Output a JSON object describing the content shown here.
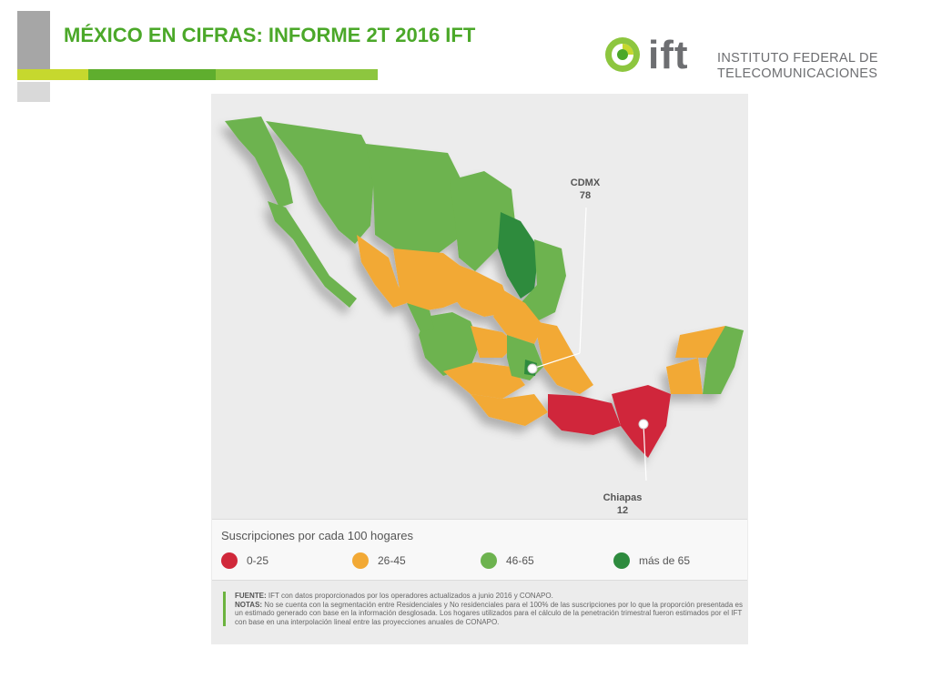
{
  "slide": {
    "title": "MÉXICO EN CIFRAS: INFORME 2T 2016 IFT"
  },
  "logo": {
    "short": "ift",
    "name_line1": "INSTITUTO FEDERAL DE",
    "name_line2": "TELECOMUNICACIONES"
  },
  "colors": {
    "brand_green": "#4ba829",
    "range_0_25": "#d0283a",
    "range_26_45": "#f2a935",
    "range_46_65": "#6db34f",
    "range_65_plus": "#2e8b3e"
  },
  "callouts": {
    "cdmx_name": "CDMX",
    "cdmx_value": "78",
    "chiapas_name": "Chiapas",
    "chiapas_value": "12"
  },
  "legend": {
    "title": "Suscripciones por cada 100 hogares",
    "items": [
      {
        "label": "0-25",
        "color": "#d0283a"
      },
      {
        "label": "26-45",
        "color": "#f2a935"
      },
      {
        "label": "46-65",
        "color": "#6db34f"
      },
      {
        "label": "más de 65",
        "color": "#2e8b3e"
      }
    ]
  },
  "notes": {
    "fuente_label": "FUENTE:",
    "fuente_text": " IFT con datos proporcionados por los operadores actualizados a junio 2016 y CONAPO.",
    "notas_label": "NOTAS:",
    "notas_text": " No se cuenta con la segmentación entre Residenciales y No residenciales para el 100% de las suscripciones por lo que la proporción presentada es un estimado generado con base en la información desglosada. Los hogares utilizados para el cálculo de la penetración trimestral fueron estimados por el IFT con base en una interpolación lineal entre las proyecciones anuales de CONAPO."
  }
}
